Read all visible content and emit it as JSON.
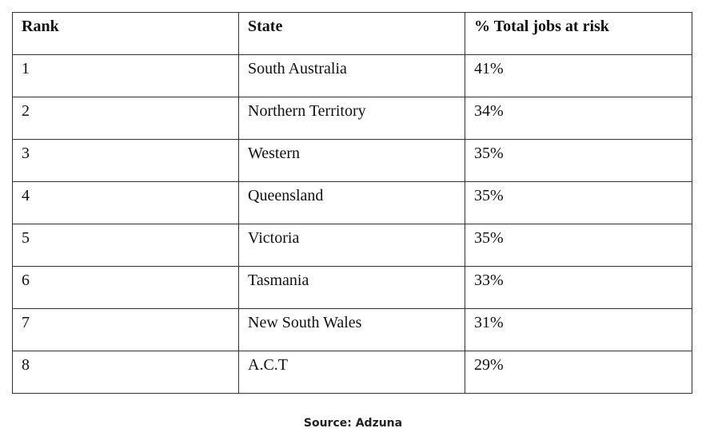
{
  "table": {
    "header": [
      "Rank",
      "State",
      "% Total jobs at risk"
    ],
    "rows": [
      [
        "1",
        "South Australia",
        "41%"
      ],
      [
        "2",
        "Northern Territory",
        "34%"
      ],
      [
        "3",
        "Western",
        "35%"
      ],
      [
        "4",
        "Queensland",
        "35%"
      ],
      [
        "5",
        "Victoria",
        "35%"
      ],
      [
        "6",
        "Tasmania",
        "33%"
      ],
      [
        "7",
        "New South Wales",
        "31%"
      ],
      [
        "8",
        "A.C.T",
        "29%"
      ]
    ]
  },
  "source": "Source: Adzuna"
}
